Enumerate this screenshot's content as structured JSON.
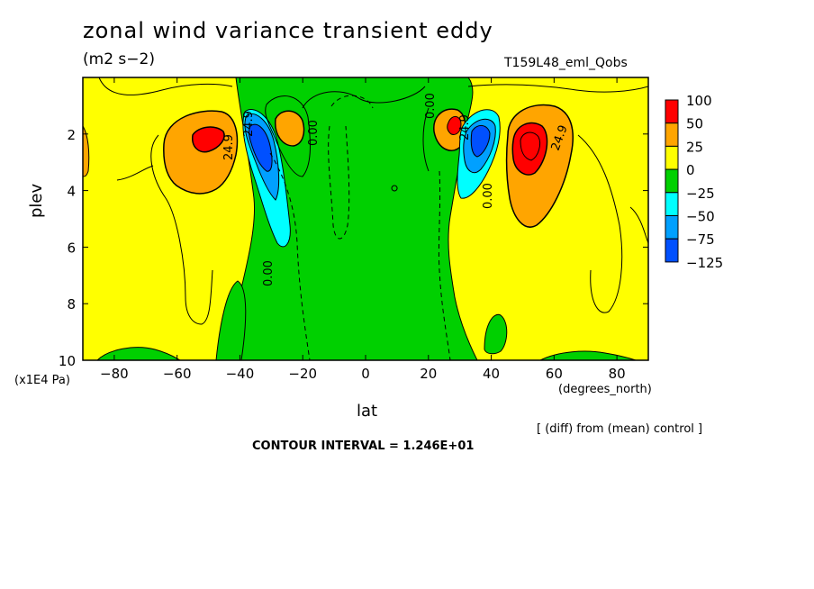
{
  "chart_data": {
    "type": "heatmap",
    "title": "zonal wind variance transient eddy",
    "subtitle": "(m2 s−2)",
    "run_id": "T159L48_eml_Qobs",
    "xlabel": "lat",
    "ylabel": "plev",
    "x_unit": "(degrees_north)",
    "y_unit": "(x1E4 Pa)",
    "xlim": [
      -90,
      90
    ],
    "ylim": [
      10,
      0
    ],
    "x_ticks": [
      -80,
      -60,
      -40,
      -20,
      0,
      20,
      40,
      60,
      80
    ],
    "y_ticks": [
      2,
      4,
      6,
      8,
      10
    ],
    "note": "[ (diff) from (mean) control ]",
    "contour_interval": "CONTOUR INTERVAL = 1.246E+01",
    "legend": {
      "labels": [
        "100",
        "50",
        "25",
        "0",
        "−25",
        "−50",
        "−75",
        "−125"
      ],
      "colors": [
        "#ff0000",
        "#ffa500",
        "#ffff00",
        "#00d000",
        "#00ffff",
        "#00a0ff",
        "#0050ff"
      ]
    },
    "contour_labels": [
      "0.00",
      "0.00",
      "0.00",
      "0.00",
      "24.9",
      "24.9",
      "24.9",
      "24.9"
    ],
    "features": [
      {
        "name": "SH jet positive max",
        "lat": -50,
        "plev": 2.4,
        "value": 75
      },
      {
        "name": "SH negative min",
        "lat": -34,
        "plev": 2.8,
        "value": -100
      },
      {
        "name": "SH positive lobe",
        "lat": -26,
        "plev": 1.8,
        "value": 37
      },
      {
        "name": "NH positive lobe",
        "lat": 28,
        "plev": 1.8,
        "value": 62
      },
      {
        "name": "NH negative min",
        "lat": 35,
        "plev": 2.6,
        "value": -87
      },
      {
        "name": "NH jet positive max",
        "lat": 51,
        "plev": 2.5,
        "value": 75
      }
    ]
  }
}
